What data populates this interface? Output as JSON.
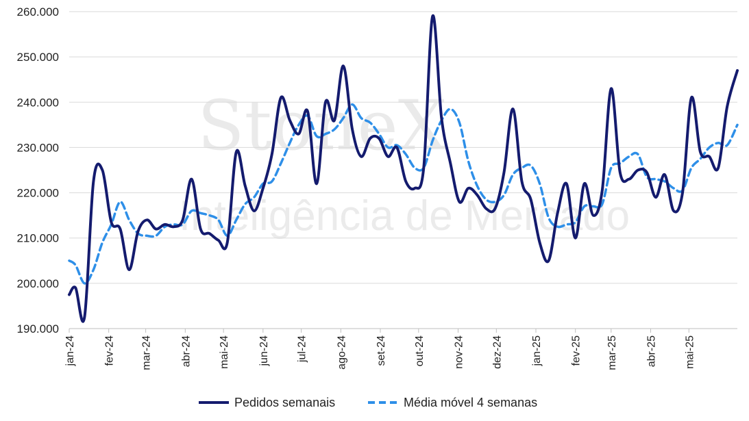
{
  "chart_data": {
    "type": "line",
    "ylim": [
      190000,
      260000
    ],
    "yticks": [
      {
        "value": 190000,
        "label": "190.000"
      },
      {
        "value": 200000,
        "label": "200.000"
      },
      {
        "value": 210000,
        "label": "210.000"
      },
      {
        "value": 220000,
        "label": "220.000"
      },
      {
        "value": 230000,
        "label": "230.000"
      },
      {
        "value": 240000,
        "label": "240.000"
      },
      {
        "value": 250000,
        "label": "250.000"
      },
      {
        "value": 260000,
        "label": "260.000"
      }
    ],
    "x_start": "2024-01-01",
    "x_end": "2025-06-08",
    "xticks": [
      {
        "date": "2024-01-01",
        "label": "jan-24"
      },
      {
        "date": "2024-02-01",
        "label": "fev-24"
      },
      {
        "date": "2024-03-01",
        "label": "mar-24"
      },
      {
        "date": "2024-04-01",
        "label": "abr-24"
      },
      {
        "date": "2024-05-01",
        "label": "mai-24"
      },
      {
        "date": "2024-06-01",
        "label": "jun-24"
      },
      {
        "date": "2024-07-01",
        "label": "jul-24"
      },
      {
        "date": "2024-08-01",
        "label": "ago-24"
      },
      {
        "date": "2024-09-01",
        "label": "set-24"
      },
      {
        "date": "2024-10-01",
        "label": "out-24"
      },
      {
        "date": "2024-11-01",
        "label": "nov-24"
      },
      {
        "date": "2024-12-01",
        "label": "dez-24"
      },
      {
        "date": "2025-01-01",
        "label": "jan-25"
      },
      {
        "date": "2025-02-01",
        "label": "fev-25"
      },
      {
        "date": "2025-03-01",
        "label": "mar-25"
      },
      {
        "date": "2025-04-01",
        "label": "abr-25"
      },
      {
        "date": "2025-05-01",
        "label": "mai-25"
      }
    ],
    "series": [
      {
        "name": "Pedidos semanais",
        "color": "#141b6e",
        "style": "solid",
        "points": [
          [
            "2024-01-01",
            197500
          ],
          [
            "2024-01-06",
            199000
          ],
          [
            "2024-01-13",
            192500
          ],
          [
            "2024-01-20",
            222500
          ],
          [
            "2024-01-27",
            225000
          ],
          [
            "2024-02-03",
            213500
          ],
          [
            "2024-02-10",
            212000
          ],
          [
            "2024-02-17",
            203000
          ],
          [
            "2024-02-24",
            211500
          ],
          [
            "2024-03-02",
            214000
          ],
          [
            "2024-03-09",
            212000
          ],
          [
            "2024-03-16",
            213000
          ],
          [
            "2024-03-23",
            212500
          ],
          [
            "2024-03-30",
            214000
          ],
          [
            "2024-04-06",
            223000
          ],
          [
            "2024-04-13",
            212000
          ],
          [
            "2024-04-20",
            211000
          ],
          [
            "2024-04-27",
            209500
          ],
          [
            "2024-05-04",
            209000
          ],
          [
            "2024-05-11",
            229000
          ],
          [
            "2024-05-18",
            221500
          ],
          [
            "2024-05-25",
            216000
          ],
          [
            "2024-06-01",
            221000
          ],
          [
            "2024-06-08",
            228500
          ],
          [
            "2024-06-15",
            241000
          ],
          [
            "2024-06-22",
            236000
          ],
          [
            "2024-06-29",
            233000
          ],
          [
            "2024-07-06",
            238000
          ],
          [
            "2024-07-13",
            222000
          ],
          [
            "2024-07-20",
            240000
          ],
          [
            "2024-07-27",
            236000
          ],
          [
            "2024-08-03",
            248000
          ],
          [
            "2024-08-10",
            234000
          ],
          [
            "2024-08-17",
            228000
          ],
          [
            "2024-08-24",
            232000
          ],
          [
            "2024-08-31",
            232000
          ],
          [
            "2024-09-07",
            228000
          ],
          [
            "2024-09-14",
            230000
          ],
          [
            "2024-09-21",
            222500
          ],
          [
            "2024-09-28",
            221000
          ],
          [
            "2024-10-05",
            225500
          ],
          [
            "2024-10-12",
            259000
          ],
          [
            "2024-10-19",
            236500
          ],
          [
            "2024-10-26",
            226500
          ],
          [
            "2024-11-02",
            218000
          ],
          [
            "2024-11-09",
            221000
          ],
          [
            "2024-11-16",
            219500
          ],
          [
            "2024-11-23",
            216500
          ],
          [
            "2024-11-30",
            216500
          ],
          [
            "2024-12-07",
            224500
          ],
          [
            "2024-12-14",
            238500
          ],
          [
            "2024-12-21",
            222500
          ],
          [
            "2024-12-28",
            218500
          ],
          [
            "2025-01-04",
            209000
          ],
          [
            "2025-01-11",
            205000
          ],
          [
            "2025-01-18",
            215500
          ],
          [
            "2025-01-25",
            222000
          ],
          [
            "2025-02-01",
            210000
          ],
          [
            "2025-02-08",
            222000
          ],
          [
            "2025-02-15",
            215000
          ],
          [
            "2025-02-22",
            220500
          ],
          [
            "2025-03-01",
            243000
          ],
          [
            "2025-03-08",
            224500
          ],
          [
            "2025-03-15",
            223000
          ],
          [
            "2025-03-22",
            225000
          ],
          [
            "2025-03-29",
            224500
          ],
          [
            "2025-04-05",
            219000
          ],
          [
            "2025-04-12",
            224000
          ],
          [
            "2025-04-19",
            216000
          ],
          [
            "2025-04-26",
            220000
          ],
          [
            "2025-05-03",
            241000
          ],
          [
            "2025-05-10",
            229000
          ],
          [
            "2025-05-17",
            228000
          ],
          [
            "2025-05-24",
            225500
          ],
          [
            "2025-05-31",
            239000
          ],
          [
            "2025-06-08",
            247000
          ]
        ]
      },
      {
        "name": "Média móvel 4 semanas",
        "color": "#2e8fe8",
        "style": "dashed",
        "points": [
          [
            "2024-01-01",
            205000
          ],
          [
            "2024-01-06",
            204000
          ],
          [
            "2024-01-13",
            200000
          ],
          [
            "2024-01-20",
            203000
          ],
          [
            "2024-01-27",
            209000
          ],
          [
            "2024-02-03",
            213000
          ],
          [
            "2024-02-10",
            218000
          ],
          [
            "2024-02-17",
            214000
          ],
          [
            "2024-02-24",
            211000
          ],
          [
            "2024-03-02",
            210500
          ],
          [
            "2024-03-09",
            210500
          ],
          [
            "2024-03-16",
            212500
          ],
          [
            "2024-03-23",
            213000
          ],
          [
            "2024-03-30",
            213000
          ],
          [
            "2024-04-06",
            216000
          ],
          [
            "2024-04-13",
            215500
          ],
          [
            "2024-04-20",
            215000
          ],
          [
            "2024-04-27",
            214000
          ],
          [
            "2024-05-04",
            210500
          ],
          [
            "2024-05-11",
            214000
          ],
          [
            "2024-05-18",
            217500
          ],
          [
            "2024-05-25",
            219000
          ],
          [
            "2024-06-01",
            222000
          ],
          [
            "2024-06-08",
            222500
          ],
          [
            "2024-06-15",
            226500
          ],
          [
            "2024-06-22",
            231000
          ],
          [
            "2024-06-29",
            235000
          ],
          [
            "2024-07-06",
            237000
          ],
          [
            "2024-07-13",
            232500
          ],
          [
            "2024-07-20",
            233000
          ],
          [
            "2024-07-27",
            234000
          ],
          [
            "2024-08-03",
            236500
          ],
          [
            "2024-08-10",
            239500
          ],
          [
            "2024-08-17",
            236500
          ],
          [
            "2024-08-24",
            235500
          ],
          [
            "2024-08-31",
            233000
          ],
          [
            "2024-09-07",
            230000
          ],
          [
            "2024-09-14",
            230500
          ],
          [
            "2024-09-21",
            228500
          ],
          [
            "2024-09-28",
            225500
          ],
          [
            "2024-10-05",
            225500
          ],
          [
            "2024-10-12",
            231500
          ],
          [
            "2024-10-19",
            236000
          ],
          [
            "2024-10-26",
            238500
          ],
          [
            "2024-11-02",
            235500
          ],
          [
            "2024-11-09",
            227000
          ],
          [
            "2024-11-16",
            221500
          ],
          [
            "2024-11-23",
            218500
          ],
          [
            "2024-11-30",
            218000
          ],
          [
            "2024-12-07",
            219500
          ],
          [
            "2024-12-14",
            224000
          ],
          [
            "2024-12-21",
            225500
          ],
          [
            "2024-12-28",
            226000
          ],
          [
            "2025-01-04",
            222000
          ],
          [
            "2025-01-11",
            214500
          ],
          [
            "2025-01-18",
            212500
          ],
          [
            "2025-01-25",
            213000
          ],
          [
            "2025-02-01",
            213500
          ],
          [
            "2025-02-08",
            217000
          ],
          [
            "2025-02-15",
            217000
          ],
          [
            "2025-02-22",
            217500
          ],
          [
            "2025-03-01",
            225500
          ],
          [
            "2025-03-08",
            226500
          ],
          [
            "2025-03-15",
            228000
          ],
          [
            "2025-03-22",
            228500
          ],
          [
            "2025-03-29",
            223500
          ],
          [
            "2025-04-05",
            223000
          ],
          [
            "2025-04-12",
            222500
          ],
          [
            "2025-04-19",
            221000
          ],
          [
            "2025-04-26",
            220500
          ],
          [
            "2025-05-03",
            225500
          ],
          [
            "2025-05-10",
            227500
          ],
          [
            "2025-05-17",
            230000
          ],
          [
            "2025-05-24",
            231000
          ],
          [
            "2025-05-31",
            230500
          ],
          [
            "2025-06-08",
            235000
          ]
        ]
      }
    ],
    "grid": "horizontal",
    "legend_position": "bottom-center"
  },
  "watermark": {
    "brand": "StoneX",
    "subtitle": "Inteligência de Mercado"
  }
}
